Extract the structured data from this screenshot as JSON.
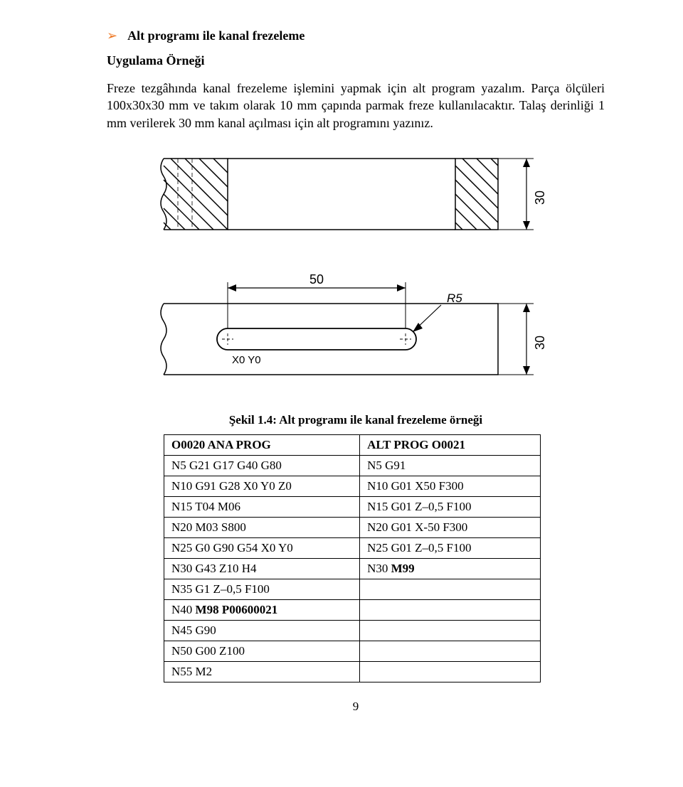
{
  "bullet_glyph": "➢",
  "bullet_color": "#ee7722",
  "heading": "Alt programı ile kanal frezeleme",
  "subheading": "Uygulama Örneği",
  "paragraph": "Freze tezgâhında kanal frezeleme işlemini yapmak için alt program yazalım. Parça ölçüleri 100x30x30 mm ve takım olarak 10 mm çapında parmak freze kullanılacaktır. Talaş derinliği 1 mm verilerek 30 mm kanal açılması için alt programını yazınız.",
  "figure1": {
    "dim_label": "30",
    "stroke": "#000000",
    "hatch": "#000000"
  },
  "figure2": {
    "dim_width_label": "50",
    "dim_height_label": "30",
    "radius_label": "R5",
    "origin_label": "X0 Y0",
    "stroke": "#000000"
  },
  "caption": "Şekil 1.4: Alt programı ile kanal frezeleme örneği",
  "table": {
    "header_left": "O0020  ANA PROG",
    "header_right": "ALT PROG O0021",
    "rows": [
      [
        "N5 G21 G17 G40 G80",
        "N5 G91"
      ],
      [
        "N10 G91 G28 X0 Y0 Z0",
        "N10 G01 X50 F300"
      ],
      [
        "N15 T04 M06",
        "N15 G01 Z–0,5 F100"
      ],
      [
        "N20 M03 S800",
        "N20 G01 X-50 F300"
      ],
      [
        "N25 G0 G90 G54 X0 Y0",
        "N25 G01 Z–0,5 F100"
      ],
      [
        "N30 G43 Z10 H4",
        "N30 M99"
      ],
      [
        "N35 G1 Z–0,5 F100",
        ""
      ],
      [
        "N40 M98 P00600021",
        ""
      ],
      [
        "N45 G90",
        ""
      ],
      [
        "N50 G00 Z100",
        ""
      ],
      [
        "N55 M2",
        ""
      ]
    ],
    "bold_cells": {
      "7-0": [
        "M98 P00600021"
      ],
      "5-1": [
        "M99"
      ]
    }
  },
  "page_number": "9"
}
